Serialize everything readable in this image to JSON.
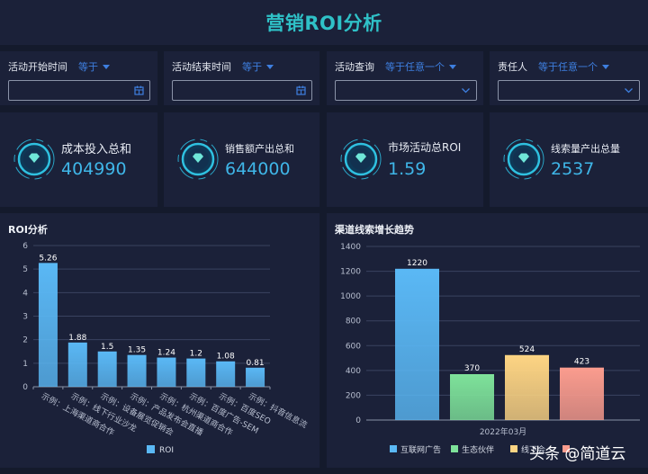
{
  "header": {
    "title": "营销ROI分析"
  },
  "filters": [
    {
      "label": "活动开始时间",
      "operator": "等于",
      "value": "",
      "icon": "calendar-icon"
    },
    {
      "label": "活动结束时间",
      "operator": "等于",
      "value": "",
      "icon": "calendar-icon"
    },
    {
      "label": "活动查询",
      "operator": "等于任意一个",
      "value": "",
      "icon": "chevron-down-icon"
    },
    {
      "label": "责任人",
      "operator": "等于任意一个",
      "value": "",
      "icon": "chevron-down-icon"
    }
  ],
  "kpis": [
    {
      "label": "成本投入总和",
      "value": "404990",
      "icon": "diamond-icon"
    },
    {
      "label": "销售额产出总和",
      "value": "644000",
      "icon": "diamond-icon"
    },
    {
      "label": "市场活动总ROI",
      "value": "1.59",
      "icon": "diamond-icon"
    },
    {
      "label": "线索量产出总量",
      "value": "2537",
      "icon": "diamond-icon"
    }
  ],
  "colors": {
    "accent": "#2fc1c7",
    "kpi_value": "#3fb6e8",
    "operator": "#3e7fe0",
    "panel_bg": "#1b2139",
    "page_bg": "#141a2c"
  },
  "chart_data": [
    {
      "type": "bar",
      "title": "ROI分析",
      "categories": [
        "示例：上海渠道商合作",
        "示例：线下行业沙龙",
        "示例：设备展览促销会",
        "示例：产品发布会直播",
        "示例：杭州渠道商合作",
        "示例：百度广告-SEM",
        "示例：百度SEO",
        "示例：抖音信息流"
      ],
      "series": [
        {
          "name": "ROI",
          "values": [
            5.26,
            1.88,
            1.5,
            1.35,
            1.24,
            1.2,
            1.08,
            0.81
          ],
          "color": "#5ab8f5"
        }
      ],
      "xlabel": "",
      "ylabel": "",
      "ylim": [
        0,
        6
      ],
      "yticks": [
        0,
        1,
        2,
        3,
        4,
        5,
        6
      ],
      "grid": true,
      "legend_position": "bottom",
      "data_labels": true
    },
    {
      "type": "bar",
      "title": "渠道线索增长趋势",
      "categories": [
        "2022年03月"
      ],
      "series": [
        {
          "name": "互联网广告",
          "values": [
            1220
          ],
          "color": "#5ab8f5"
        },
        {
          "name": "生态伙伴",
          "values": [
            370
          ],
          "color": "#7ee29a"
        },
        {
          "name": "线下会",
          "values": [
            524
          ],
          "color": "#fdd483"
        },
        {
          "name": "",
          "values": [
            423
          ],
          "color": "#fb9c8e"
        }
      ],
      "xlabel": "",
      "ylabel": "",
      "ylim": [
        0,
        1400
      ],
      "yticks": [
        0,
        200,
        400,
        600,
        800,
        1000,
        1200,
        1400
      ],
      "grid": true,
      "legend_position": "bottom",
      "data_labels": true
    }
  ],
  "watermark": "头条 @简道云"
}
